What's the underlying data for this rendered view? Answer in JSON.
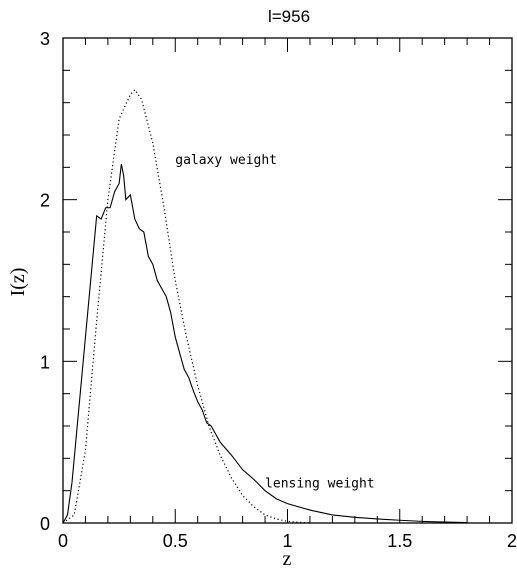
{
  "chart_data": {
    "type": "line",
    "title": "l=956",
    "xlabel": "z",
    "ylabel": "I(z)",
    "xlim": [
      0,
      2
    ],
    "ylim": [
      0,
      3
    ],
    "xticks": [
      0,
      0.5,
      1,
      1.5,
      2
    ],
    "xtick_labels": [
      "0",
      "0.5",
      "1",
      "1.5",
      "2"
    ],
    "yticks": [
      0,
      1,
      2,
      3
    ],
    "ytick_labels": [
      "0",
      "1",
      "2",
      "3"
    ],
    "grid": false,
    "legend": "none",
    "annotations": [
      {
        "text": "galaxy weight",
        "x": 0.5,
        "y": 2.22
      },
      {
        "text": "lensing weight",
        "x": 0.9,
        "y": 0.22
      }
    ],
    "series": [
      {
        "style": "solid",
        "x": [
          0,
          0.02,
          0.04,
          0.06,
          0.08,
          0.1,
          0.12,
          0.15,
          0.17,
          0.19,
          0.21,
          0.23,
          0.25,
          0.26,
          0.27,
          0.28,
          0.3,
          0.32,
          0.34,
          0.36,
          0.38,
          0.4,
          0.42,
          0.44,
          0.46,
          0.48,
          0.5,
          0.52,
          0.54,
          0.56,
          0.58,
          0.6,
          0.62,
          0.64,
          0.66,
          0.7,
          0.75,
          0.8,
          0.85,
          0.9,
          0.95,
          1.0,
          1.1,
          1.2,
          1.3,
          1.4,
          1.5,
          1.6,
          1.7,
          1.8
        ],
        "y": [
          0,
          0.05,
          0.25,
          0.55,
          0.85,
          1.15,
          1.45,
          1.9,
          1.88,
          1.95,
          1.95,
          2.05,
          2.1,
          2.22,
          2.15,
          2.0,
          2.03,
          1.88,
          1.82,
          1.8,
          1.65,
          1.6,
          1.5,
          1.45,
          1.4,
          1.3,
          1.15,
          1.05,
          0.95,
          0.9,
          0.82,
          0.75,
          0.7,
          0.62,
          0.6,
          0.5,
          0.42,
          0.33,
          0.27,
          0.2,
          0.15,
          0.12,
          0.08,
          0.05,
          0.035,
          0.025,
          0.017,
          0.01,
          0.006,
          0.003
        ]
      },
      {
        "style": "dotted",
        "x": [
          0,
          0.05,
          0.1,
          0.15,
          0.2,
          0.25,
          0.3,
          0.32,
          0.35,
          0.4,
          0.45,
          0.5,
          0.55,
          0.6,
          0.65,
          0.7,
          0.75,
          0.8,
          0.85,
          0.9,
          0.95,
          1.0,
          1.05,
          1.1
        ],
        "y": [
          0,
          0.05,
          0.45,
          1.25,
          2.0,
          2.5,
          2.65,
          2.68,
          2.62,
          2.35,
          1.95,
          1.5,
          1.15,
          0.85,
          0.6,
          0.42,
          0.28,
          0.17,
          0.1,
          0.05,
          0.025,
          0.01,
          0.004,
          0.001
        ]
      }
    ]
  }
}
